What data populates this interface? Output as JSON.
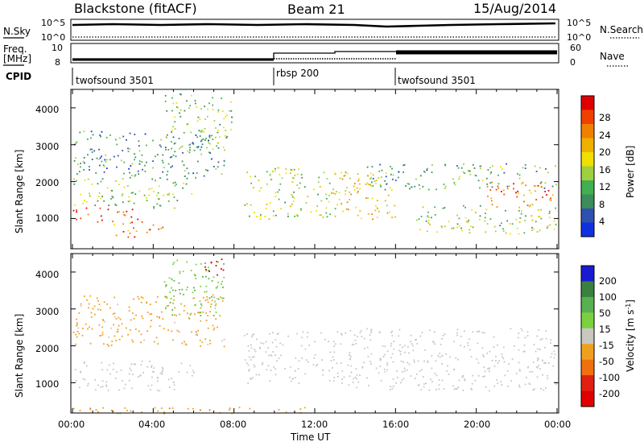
{
  "header": {
    "station": "Blackstone (fitACF)",
    "beam": "Beam 21",
    "date": "15/Aug/2014"
  },
  "top_panels": {
    "nsky_label": "N.Sky",
    "nsky_ticks": [
      "10^5",
      "10^0"
    ],
    "nsearch_label": "N.Search",
    "freq_label": "Freq.",
    "freq_unit": "[MHz]",
    "freq_ticks": [
      "10",
      "8"
    ],
    "nave_ticks": [
      "60",
      "0"
    ],
    "nave_label": "Nave",
    "cpid_label": "CPID"
  },
  "cpid_segments": [
    {
      "label": "twofsound 3501",
      "start_hour": 0
    },
    {
      "label": "rbsp 200",
      "start_hour": 10
    },
    {
      "label": "twofsound 3501",
      "start_hour": 16
    }
  ],
  "power_colorbar": {
    "label": "Power [dB]",
    "ticks": [
      "28",
      "24",
      "20",
      "16",
      "12",
      "8",
      "4"
    ],
    "colors": [
      "#e00000",
      "#f04000",
      "#f08000",
      "#f0b000",
      "#f0e000",
      "#a0d040",
      "#40b050",
      "#3c8c5c",
      "#3050b0",
      "#1030e0"
    ]
  },
  "velocity_colorbar": {
    "label": "Velocity [m s",
    "label_sup": "-1",
    "label_end": "]",
    "ticks": [
      "200",
      "100",
      "50",
      "15",
      "-15",
      "-50",
      "-100",
      "-200"
    ],
    "colors": [
      "#1a1ad0",
      "#3a8040",
      "#58b050",
      "#7cd040",
      "#c8c8c0",
      "#f0a020",
      "#f07010",
      "#e02010",
      "#e00000"
    ]
  },
  "axes": {
    "ylabel": "Slant Range [km]",
    "yticks": [
      "1000",
      "2000",
      "3000",
      "4000"
    ],
    "xticks": [
      "00:00",
      "04:00",
      "08:00",
      "12:00",
      "16:00",
      "20:00",
      "00:00"
    ],
    "xlabel": "Time UT"
  },
  "chart_data": [
    {
      "type": "heatmap",
      "title": "",
      "quantity": "Power",
      "xlabel": "Time UT",
      "ylabel": "Slant Range [km]",
      "xlim_hours": [
        0,
        24
      ],
      "ylim": [
        180,
        4500
      ],
      "zlim": [
        0,
        30
      ],
      "colorbar_label": "Power [dB]",
      "echo_regions": [
        {
          "t0": 0.0,
          "t1": 3.5,
          "r0": 900,
          "r1": 1300,
          "z": 26
        },
        {
          "t0": 2.0,
          "t1": 4.5,
          "r0": 500,
          "r1": 900,
          "z": 22
        },
        {
          "t0": 0.0,
          "t1": 6.0,
          "r0": 1300,
          "r1": 2100,
          "z": 12
        },
        {
          "t0": 0.0,
          "t1": 7.5,
          "r0": 2100,
          "r1": 3400,
          "z": 8
        },
        {
          "t0": 4.5,
          "t1": 8.0,
          "r0": 2800,
          "r1": 4400,
          "z": 12
        },
        {
          "t0": 8.5,
          "t1": 13.0,
          "r0": 1000,
          "r1": 2400,
          "z": 14
        },
        {
          "t0": 13.0,
          "t1": 16.0,
          "r0": 1000,
          "r1": 2300,
          "z": 18
        },
        {
          "t0": 14.5,
          "t1": 24.0,
          "r0": 1800,
          "r1": 2500,
          "z": 10
        },
        {
          "t0": 17.0,
          "t1": 24.0,
          "r0": 600,
          "r1": 1400,
          "z": 14
        },
        {
          "t0": 20.5,
          "t1": 24.0,
          "r0": 1300,
          "r1": 2000,
          "z": 22
        }
      ]
    },
    {
      "type": "heatmap",
      "title": "",
      "quantity": "Velocity",
      "xlabel": "Time UT",
      "ylabel": "Slant Range [km]",
      "xlim_hours": [
        0,
        24
      ],
      "ylim": [
        180,
        4500
      ],
      "zlim": [
        -200,
        200
      ],
      "colorbar_label": "Velocity [m s-1]",
      "echo_regions": [
        {
          "t0": 0.0,
          "t1": 6.0,
          "r0": 800,
          "r1": 1600,
          "z": 0
        },
        {
          "t0": 0.0,
          "t1": 7.5,
          "r0": 2000,
          "r1": 3400,
          "z": -40
        },
        {
          "t0": 4.5,
          "t1": 7.5,
          "r0": 2800,
          "r1": 4400,
          "z": 60
        },
        {
          "t0": 6.5,
          "t1": 7.5,
          "r0": 3800,
          "r1": 4400,
          "z": -180
        },
        {
          "t0": 8.5,
          "t1": 13.0,
          "r0": 1000,
          "r1": 2400,
          "z": 0
        },
        {
          "t0": 13.0,
          "t1": 24.0,
          "r0": 800,
          "r1": 2500,
          "z": 0
        },
        {
          "t0": 0.0,
          "t1": 12.0,
          "r0": 180,
          "r1": 350,
          "z": -60
        }
      ]
    }
  ]
}
